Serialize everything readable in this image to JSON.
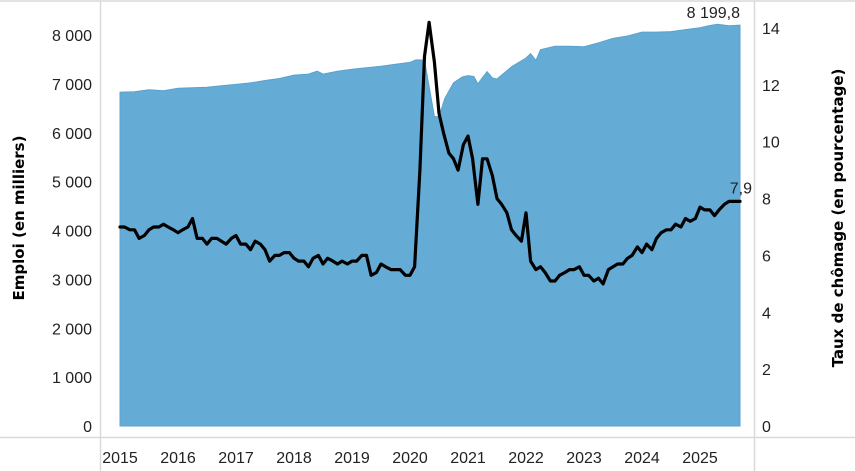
{
  "chart_data": {
    "type": "area+line",
    "title": "",
    "xlabel": "",
    "ylabel_left": "Emploi (en milliers)",
    "ylabel_right": "Taux de chômage (en pourcentage)",
    "x_tick_labels": [
      "2015",
      "2016",
      "2017",
      "2018",
      "2019",
      "2020",
      "2021",
      "2022",
      "2023",
      "2024",
      "2025"
    ],
    "y_left_tick_labels": [
      "0",
      "1 000",
      "2 000",
      "3 000",
      "4 000",
      "5 000",
      "6 000",
      "7 000",
      "8 000"
    ],
    "y_right_tick_labels": [
      "0",
      "2",
      "4",
      "6",
      "8",
      "10",
      "12",
      "14"
    ],
    "ylim_left": [
      0,
      8000
    ],
    "ylim_right": [
      0,
      14
    ],
    "xlim": [
      2014.65,
      2025.95
    ],
    "grid": false,
    "legend": "none",
    "annotations": [
      {
        "series": "Emploi",
        "text": "8 199,8"
      },
      {
        "series": "Taux de chômage",
        "text": "7,9"
      }
    ],
    "series": [
      {
        "name": "Emploi",
        "axis": "left",
        "kind": "area",
        "color": "#64acd6",
        "x": [
          2015.0,
          2015.25,
          2015.5,
          2015.75,
          2016.0,
          2016.25,
          2016.5,
          2016.75,
          2017.0,
          2017.25,
          2017.5,
          2017.75,
          2018.0,
          2018.25,
          2018.4,
          2018.5,
          2018.75,
          2019.0,
          2019.25,
          2019.5,
          2019.75,
          2020.0,
          2020.1,
          2020.17,
          2020.25,
          2020.33,
          2020.42,
          2020.5,
          2020.6,
          2020.75,
          2020.9,
          2021.0,
          2021.1,
          2021.17,
          2021.25,
          2021.33,
          2021.42,
          2021.5,
          2021.75,
          2022.0,
          2022.08,
          2022.17,
          2022.25,
          2022.5,
          2022.75,
          2023.0,
          2023.25,
          2023.5,
          2023.75,
          2024.0,
          2024.25,
          2024.5,
          2024.75,
          2025.0,
          2025.15,
          2025.3,
          2025.5,
          2025.69
        ],
        "values": [
          6830,
          6840,
          6880,
          6860,
          6910,
          6920,
          6930,
          6960,
          6990,
          7020,
          7070,
          7110,
          7180,
          7200,
          7260,
          7200,
          7260,
          7300,
          7330,
          7360,
          7400,
          7440,
          7490,
          7490,
          7480,
          6950,
          6330,
          6330,
          6700,
          7020,
          7140,
          7170,
          7150,
          7000,
          7130,
          7250,
          7120,
          7100,
          7350,
          7530,
          7620,
          7480,
          7700,
          7770,
          7770,
          7760,
          7840,
          7930,
          7980,
          8060,
          8060,
          8070,
          8110,
          8150,
          8190,
          8220,
          8190,
          8199.8
        ]
      },
      {
        "name": "Taux de chômage",
        "axis": "right",
        "kind": "line",
        "color": "#000000",
        "x": [
          2015.0,
          2015.08,
          2015.17,
          2015.25,
          2015.33,
          2015.42,
          2015.5,
          2015.58,
          2015.67,
          2015.75,
          2015.83,
          2015.92,
          2016.0,
          2016.08,
          2016.17,
          2016.25,
          2016.33,
          2016.42,
          2016.5,
          2016.58,
          2016.67,
          2016.75,
          2016.83,
          2016.92,
          2017.0,
          2017.08,
          2017.17,
          2017.25,
          2017.33,
          2017.42,
          2017.5,
          2017.58,
          2017.67,
          2017.75,
          2017.83,
          2017.92,
          2018.0,
          2018.08,
          2018.17,
          2018.25,
          2018.33,
          2018.42,
          2018.5,
          2018.58,
          2018.67,
          2018.75,
          2018.83,
          2018.92,
          2019.0,
          2019.08,
          2019.17,
          2019.25,
          2019.33,
          2019.42,
          2019.5,
          2019.58,
          2019.67,
          2019.75,
          2019.83,
          2019.92,
          2020.0,
          2020.08,
          2020.17,
          2020.25,
          2020.33,
          2020.42,
          2020.5,
          2020.58,
          2020.67,
          2020.75,
          2020.83,
          2020.92,
          2021.0,
          2021.08,
          2021.17,
          2021.25,
          2021.33,
          2021.42,
          2021.5,
          2021.58,
          2021.67,
          2021.75,
          2021.83,
          2021.92,
          2022.0,
          2022.08,
          2022.17,
          2022.25,
          2022.33,
          2022.42,
          2022.5,
          2022.58,
          2022.67,
          2022.75,
          2022.83,
          2022.92,
          2023.0,
          2023.08,
          2023.17,
          2023.25,
          2023.33,
          2023.42,
          2023.5,
          2023.58,
          2023.67,
          2023.75,
          2023.83,
          2023.92,
          2024.0,
          2024.08,
          2024.17,
          2024.25,
          2024.33,
          2024.42,
          2024.5,
          2024.58,
          2024.67,
          2024.75,
          2024.83,
          2024.92,
          2025.0,
          2025.08,
          2025.17,
          2025.25,
          2025.33,
          2025.42,
          2025.5,
          2025.58,
          2025.69
        ],
        "values": [
          7.0,
          7.0,
          6.9,
          6.9,
          6.6,
          6.7,
          6.9,
          7.0,
          7.0,
          7.1,
          7.0,
          6.9,
          6.8,
          6.9,
          7.0,
          7.3,
          6.6,
          6.6,
          6.4,
          6.6,
          6.6,
          6.5,
          6.4,
          6.6,
          6.7,
          6.4,
          6.4,
          6.2,
          6.5,
          6.4,
          6.2,
          5.8,
          6.0,
          6.0,
          6.1,
          6.1,
          5.9,
          5.8,
          5.8,
          5.6,
          5.9,
          6.0,
          5.7,
          5.9,
          5.8,
          5.7,
          5.8,
          5.7,
          5.8,
          5.8,
          6.0,
          6.0,
          5.3,
          5.4,
          5.7,
          5.6,
          5.5,
          5.5,
          5.5,
          5.3,
          5.3,
          5.6,
          9.0,
          13.0,
          14.2,
          12.8,
          11.0,
          10.3,
          9.6,
          9.4,
          9.0,
          9.9,
          10.2,
          9.4,
          7.8,
          9.4,
          9.4,
          8.8,
          8.0,
          7.8,
          7.5,
          6.9,
          6.7,
          6.5,
          7.5,
          5.8,
          5.5,
          5.6,
          5.4,
          5.1,
          5.1,
          5.3,
          5.4,
          5.5,
          5.5,
          5.6,
          5.3,
          5.3,
          5.1,
          5.2,
          5.0,
          5.5,
          5.6,
          5.7,
          5.7,
          5.9,
          6.0,
          6.3,
          6.1,
          6.4,
          6.2,
          6.6,
          6.8,
          6.9,
          6.9,
          7.1,
          7.0,
          7.3,
          7.2,
          7.3,
          7.7,
          7.6,
          7.6,
          7.4,
          7.6,
          7.8,
          7.9,
          7.9,
          7.9
        ]
      }
    ]
  }
}
